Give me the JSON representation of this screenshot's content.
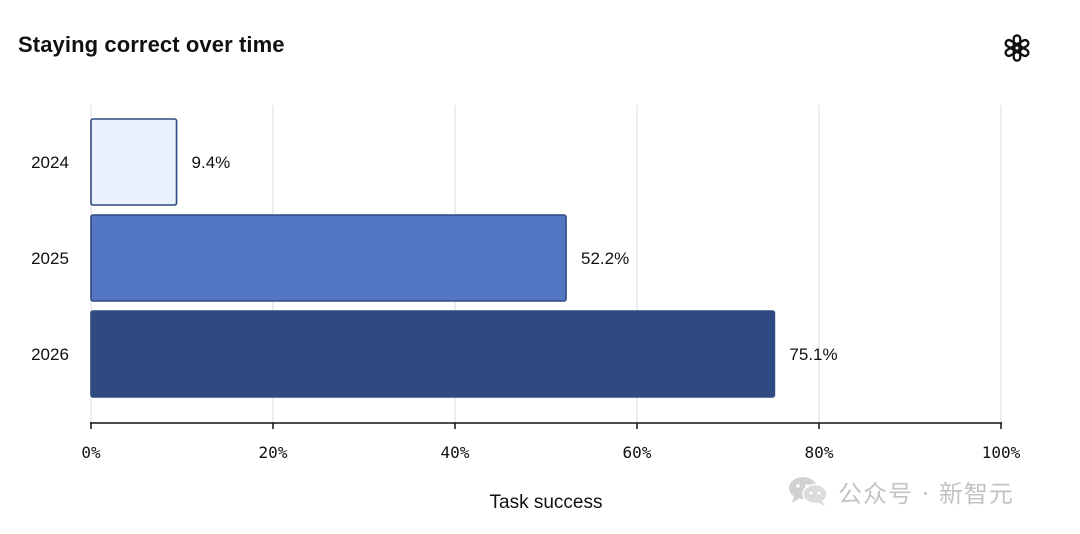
{
  "title": "Staying correct over time",
  "logo_icon": "openai-logo-icon",
  "watermark": {
    "icon": "wechat-icon",
    "text": "公众号 · 新智元"
  },
  "chart_data": {
    "type": "bar",
    "orientation": "horizontal",
    "title": "Staying correct over time",
    "categories": [
      "2024",
      "2025",
      "2026"
    ],
    "values": [
      9.4,
      52.2,
      75.1
    ],
    "value_labels": [
      "9.4%",
      "52.2%",
      "75.1%"
    ],
    "xlabel": "Task success",
    "ylabel": "",
    "xlim": [
      0,
      100
    ],
    "x_ticks": [
      0,
      20,
      40,
      60,
      80,
      100
    ],
    "x_tick_labels": [
      "0%",
      "20%",
      "40%",
      "60%",
      "80%",
      "100%"
    ],
    "grid": true,
    "legend": "none",
    "colors": [
      "#e9f1fd",
      "#5477c4",
      "#2f4a80"
    ],
    "edge_color": "#2f4a80"
  }
}
